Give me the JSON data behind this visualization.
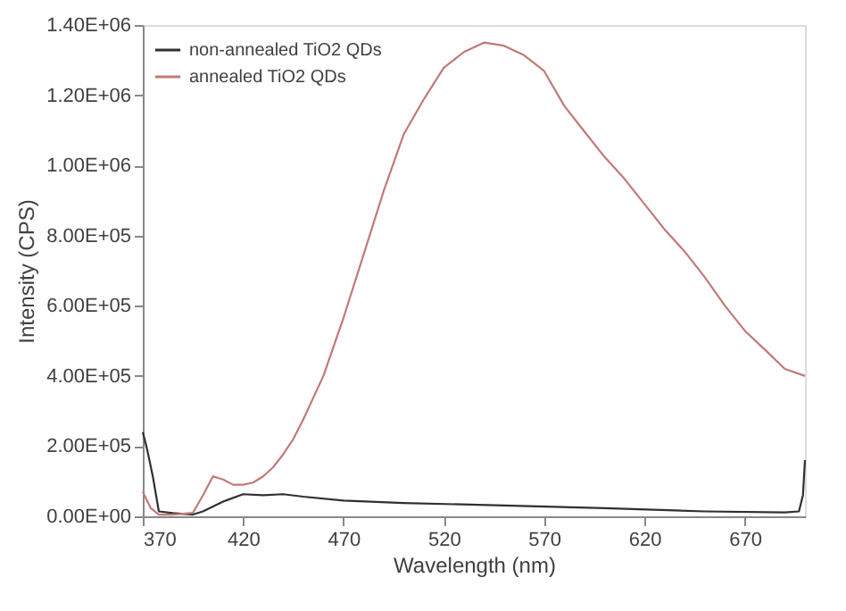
{
  "chart_data": {
    "type": "line",
    "xlabel": "Wavelength (nm)",
    "ylabel": "Intensity (CPS)",
    "xlim": [
      370,
      700
    ],
    "xticks": [
      370,
      420,
      470,
      520,
      570,
      620,
      670
    ],
    "ylim": [
      0,
      1400000
    ],
    "yticks": [
      {
        "value": 0,
        "label": "0.00E+00"
      },
      {
        "value": 200000,
        "label": "2.00E+05"
      },
      {
        "value": 400000,
        "label": "4.00E+05"
      },
      {
        "value": 600000,
        "label": "6.00E+05"
      },
      {
        "value": 800000,
        "label": "8.00E+05"
      },
      {
        "value": 1000000,
        "label": "1.00E+06"
      },
      {
        "value": 1200000,
        "label": "1.20E+06"
      },
      {
        "value": 1400000,
        "label": "1.40E+06"
      }
    ],
    "grid": false,
    "legend": "top left",
    "marker": "none",
    "line_style": "solid",
    "series": [
      {
        "name": "non-annealed TiO2 QDs",
        "color": "#303030",
        "x": [
          370,
          372,
          375,
          378,
          385,
          395,
          400,
          410,
          420,
          430,
          440,
          450,
          470,
          500,
          550,
          600,
          650,
          690,
          697,
          699,
          700
        ],
        "values": [
          240000,
          195000,
          114000,
          14000,
          9000,
          5000,
          14000,
          42000,
          63000,
          60000,
          63000,
          56000,
          45000,
          38000,
          31000,
          23000,
          14000,
          11000,
          14000,
          60000,
          160000
        ]
      },
      {
        "name": "annealed TiO2 QDs",
        "color": "#c07a78",
        "x": [
          370,
          374,
          378,
          385,
          395,
          400,
          405,
          410,
          415,
          420,
          425,
          430,
          435,
          440,
          445,
          450,
          460,
          470,
          480,
          490,
          500,
          510,
          520,
          530,
          540,
          550,
          560,
          570,
          580,
          590,
          600,
          610,
          620,
          630,
          640,
          650,
          660,
          670,
          680,
          690,
          700
        ],
        "values": [
          70000,
          23000,
          5000,
          5000,
          10000,
          60000,
          114000,
          105000,
          90000,
          90000,
          96000,
          114000,
          140000,
          177000,
          220000,
          276000,
          400000,
          565000,
          745000,
          926000,
          1088000,
          1188000,
          1278000,
          1323000,
          1350000,
          1341000,
          1314000,
          1269000,
          1170000,
          1097000,
          1025000,
          962000,
          890000,
          818000,
          755000,
          682000,
          601000,
          529000,
          475000,
          420000,
          400000
        ]
      }
    ]
  }
}
